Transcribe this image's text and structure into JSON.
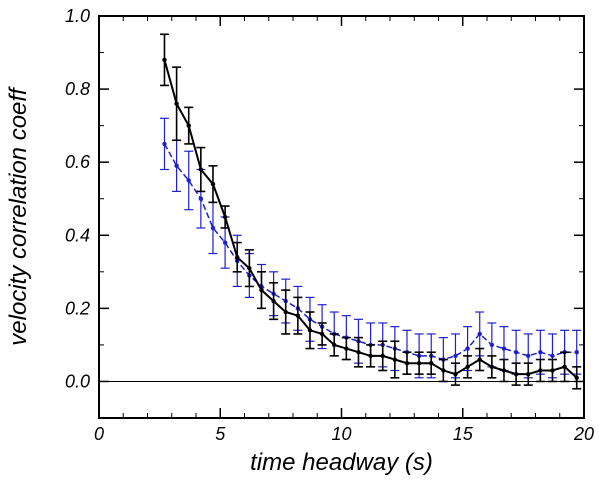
{
  "chart_data": {
    "type": "line",
    "title": "",
    "xlabel": "time headway (s)",
    "ylabel": "velocity correlation coeff",
    "xlim": [
      0,
      20
    ],
    "ylim": [
      -0.1,
      1.0
    ],
    "xticks": [
      "0",
      "5",
      "10",
      "15",
      "20"
    ],
    "yticks": [
      "0.0",
      "0.2",
      "0.4",
      "0.6",
      "0.8",
      "1.0"
    ],
    "xtick_values": [
      0,
      5,
      10,
      15,
      20
    ],
    "ytick_values": [
      0.0,
      0.2,
      0.4,
      0.6,
      0.8,
      1.0
    ],
    "zero_line": true,
    "grid": false,
    "series": [
      {
        "color": "#1f1fd0",
        "dashed": true,
        "x": [
          2.7,
          3.2,
          3.7,
          4.2,
          4.7,
          5.2,
          5.7,
          6.2,
          6.7,
          7.2,
          7.7,
          8.2,
          8.7,
          9.2,
          9.7,
          10.2,
          10.7,
          11.2,
          11.7,
          12.2,
          12.7,
          13.2,
          13.7,
          14.2,
          14.7,
          15.2,
          15.7,
          16.2,
          16.7,
          17.2,
          17.7,
          18.2,
          18.7,
          19.2,
          19.7
        ],
        "y": [
          0.65,
          0.59,
          0.55,
          0.5,
          0.42,
          0.38,
          0.33,
          0.29,
          0.26,
          0.24,
          0.22,
          0.2,
          0.17,
          0.15,
          0.13,
          0.12,
          0.11,
          0.1,
          0.1,
          0.09,
          0.08,
          0.07,
          0.07,
          0.06,
          0.07,
          0.09,
          0.13,
          0.1,
          0.09,
          0.08,
          0.07,
          0.08,
          0.07,
          0.08,
          0.08
        ],
        "err": [
          0.07,
          0.07,
          0.08,
          0.08,
          0.07,
          0.07,
          0.07,
          0.06,
          0.06,
          0.06,
          0.06,
          0.06,
          0.06,
          0.06,
          0.06,
          0.06,
          0.06,
          0.06,
          0.06,
          0.06,
          0.06,
          0.06,
          0.06,
          0.06,
          0.06,
          0.06,
          0.06,
          0.06,
          0.06,
          0.06,
          0.06,
          0.06,
          0.06,
          0.06,
          0.06
        ]
      },
      {
        "color": "#000000",
        "dashed": false,
        "x": [
          2.7,
          3.2,
          3.7,
          4.2,
          4.7,
          5.2,
          5.7,
          6.2,
          6.7,
          7.2,
          7.7,
          8.2,
          8.7,
          9.2,
          9.7,
          10.2,
          10.7,
          11.2,
          11.7,
          12.2,
          12.7,
          13.2,
          13.7,
          14.2,
          14.7,
          15.2,
          15.7,
          16.2,
          16.7,
          17.2,
          17.7,
          18.2,
          18.7,
          19.2,
          19.7
        ],
        "y": [
          0.88,
          0.76,
          0.7,
          0.58,
          0.54,
          0.45,
          0.34,
          0.31,
          0.25,
          0.22,
          0.19,
          0.18,
          0.14,
          0.13,
          0.1,
          0.09,
          0.08,
          0.07,
          0.07,
          0.06,
          0.05,
          0.05,
          0.05,
          0.03,
          0.02,
          0.04,
          0.06,
          0.04,
          0.03,
          0.02,
          0.02,
          0.03,
          0.03,
          0.04,
          0.01
        ],
        "err": [
          0.07,
          0.1,
          0.05,
          0.06,
          0.05,
          0.03,
          0.04,
          0.05,
          0.05,
          0.05,
          0.06,
          0.05,
          0.05,
          0.03,
          0.03,
          0.03,
          0.04,
          0.03,
          0.04,
          0.05,
          0.03,
          0.03,
          0.03,
          0.03,
          0.03,
          0.03,
          0.03,
          0.03,
          0.03,
          0.03,
          0.03,
          0.03,
          0.03,
          0.04,
          0.03
        ]
      }
    ]
  }
}
